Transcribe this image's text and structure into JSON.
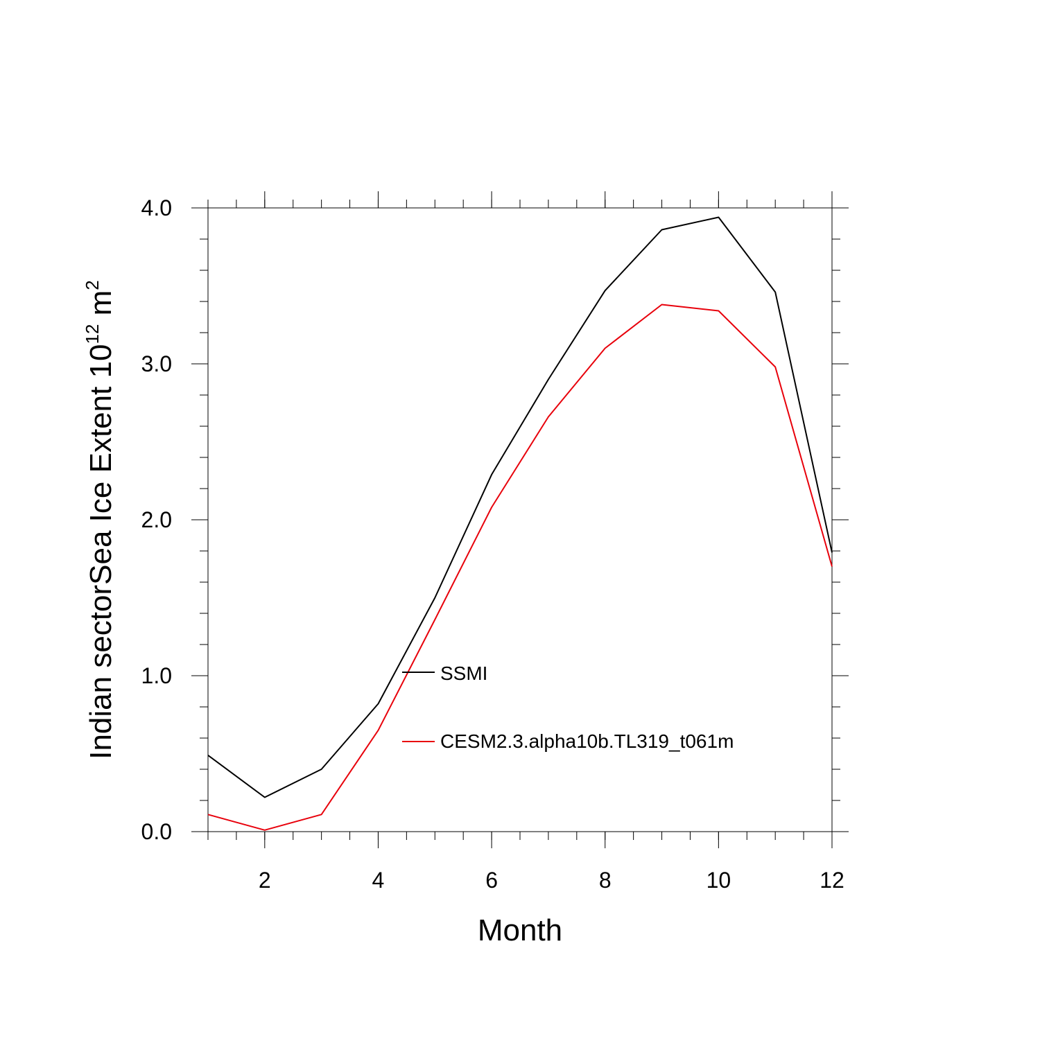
{
  "chart_data": {
    "type": "line",
    "title": "",
    "xlabel": "Month",
    "ylabel": "Indian sectorSea Ice Extent 10",
    "ylabel_exponent": "12",
    "ylabel_unit": " m",
    "ylabel_unit_exponent": "2",
    "xlim": [
      1,
      12
    ],
    "ylim": [
      0,
      4
    ],
    "x_ticks": [
      2,
      4,
      6,
      8,
      10,
      12
    ],
    "x_tick_labels": [
      "2",
      "4",
      "6",
      "8",
      "10",
      "12"
    ],
    "y_ticks": [
      0,
      1,
      2,
      3,
      4
    ],
    "y_tick_labels": [
      "0.0",
      "1.0",
      "2.0",
      "3.0",
      "4.0"
    ],
    "grid": false,
    "legend_position": "center",
    "x": [
      1,
      2,
      3,
      4,
      5,
      6,
      7,
      8,
      9,
      10,
      11,
      12
    ],
    "series": [
      {
        "name": "SSMI",
        "color": "#000000",
        "values": [
          0.49,
          0.22,
          0.4,
          0.82,
          1.5,
          2.29,
          2.9,
          3.47,
          3.86,
          3.94,
          3.46,
          1.79
        ]
      },
      {
        "name": "CESM2.3.alpha10b.TL319_t061m",
        "color": "#e8000b",
        "values": [
          0.11,
          0.01,
          0.11,
          0.65,
          1.36,
          2.08,
          2.66,
          3.1,
          3.38,
          3.34,
          2.98,
          1.7
        ]
      }
    ]
  }
}
